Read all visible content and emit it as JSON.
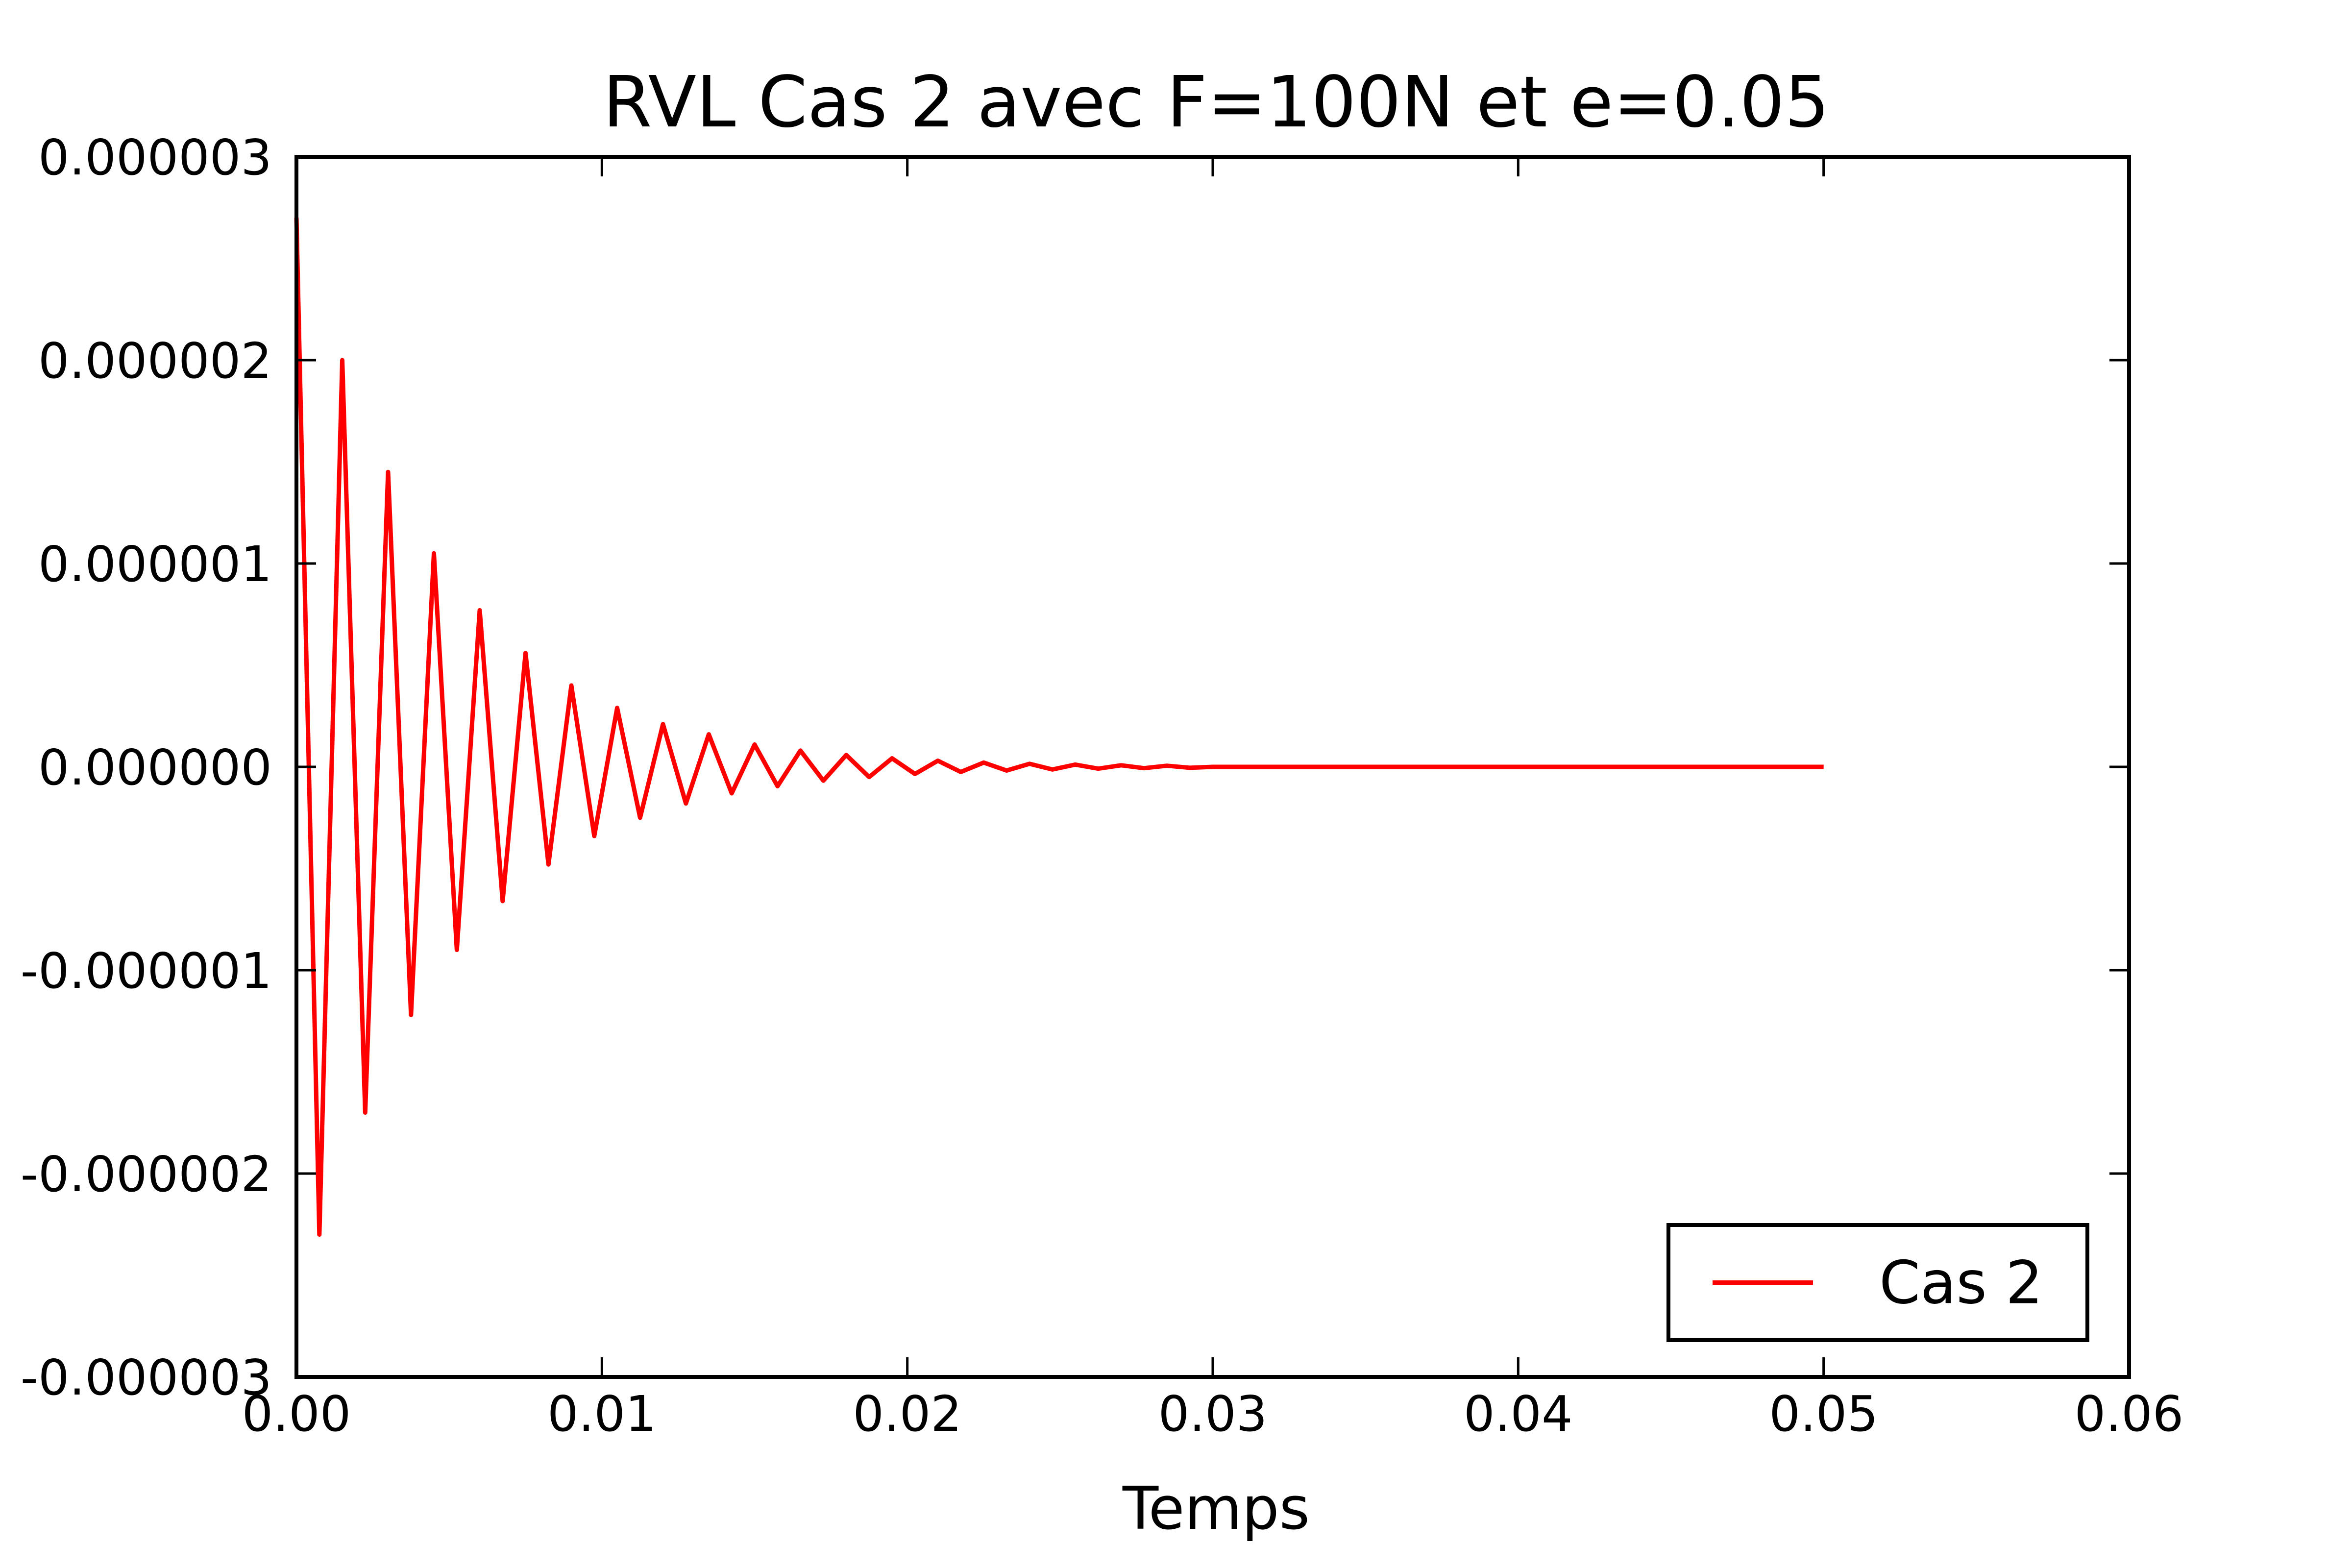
{
  "chart_data": {
    "type": "line",
    "title": "RVL Cas 2 avec F=100N et e=0.05",
    "xlabel": "Temps",
    "ylabel": "",
    "xlim": [
      0.0,
      0.06
    ],
    "ylim": [
      -3e-06,
      3e-06
    ],
    "x_ticks": [
      "0.00",
      "0.01",
      "0.02",
      "0.03",
      "0.04",
      "0.05",
      "0.06"
    ],
    "y_ticks": [
      "-0.000003",
      "-0.000002",
      "-0.000001",
      "0.000000",
      "0.000001",
      "0.000002",
      "0.000003"
    ],
    "grid": false,
    "legend": {
      "position": "bottom-right",
      "entries": [
        "Cas 2"
      ]
    },
    "series": [
      {
        "name": "Cas 2",
        "color": "#ff0000",
        "x": [
          0.0,
          0.00075,
          0.0015,
          0.00225,
          0.003,
          0.00375,
          0.0045,
          0.00525,
          0.006,
          0.00675,
          0.0075,
          0.00825,
          0.009,
          0.00975,
          0.0105,
          0.01125,
          0.012,
          0.01275,
          0.0135,
          0.01425,
          0.015,
          0.01575,
          0.0165,
          0.01725,
          0.018,
          0.01875,
          0.0195,
          0.02025,
          0.021,
          0.02175,
          0.0225,
          0.02325,
          0.024,
          0.02475,
          0.0255,
          0.02625,
          0.027,
          0.02775,
          0.0285,
          0.02925,
          0.03,
          0.032,
          0.034,
          0.036,
          0.038,
          0.04,
          0.045,
          0.05
        ],
        "y": [
          2.7e-06,
          -2.3e-06,
          2e-06,
          -1.7e-06,
          1.45e-06,
          -1.22e-06,
          1.05e-06,
          -9e-07,
          7.7e-07,
          -6.6e-07,
          5.6e-07,
          -4.8e-07,
          4e-07,
          -3.4e-07,
          2.9e-07,
          -2.5e-07,
          2.1e-07,
          -1.8e-07,
          1.6e-07,
          -1.3e-07,
          1.1e-07,
          -9.5e-08,
          8e-08,
          -6.8e-08,
          5.8e-08,
          -5e-08,
          4.2e-08,
          -3.5e-08,
          3e-08,
          -2.5e-08,
          2.1e-08,
          -1.8e-08,
          1.5e-08,
          -1.3e-08,
          1.1e-08,
          -9e-09,
          7.7e-09,
          -6.5e-09,
          5.5e-09,
          -4.6e-09,
          0.0,
          0.0,
          0.0,
          0.0,
          0.0,
          0.0,
          0.0,
          0.0
        ]
      }
    ]
  }
}
